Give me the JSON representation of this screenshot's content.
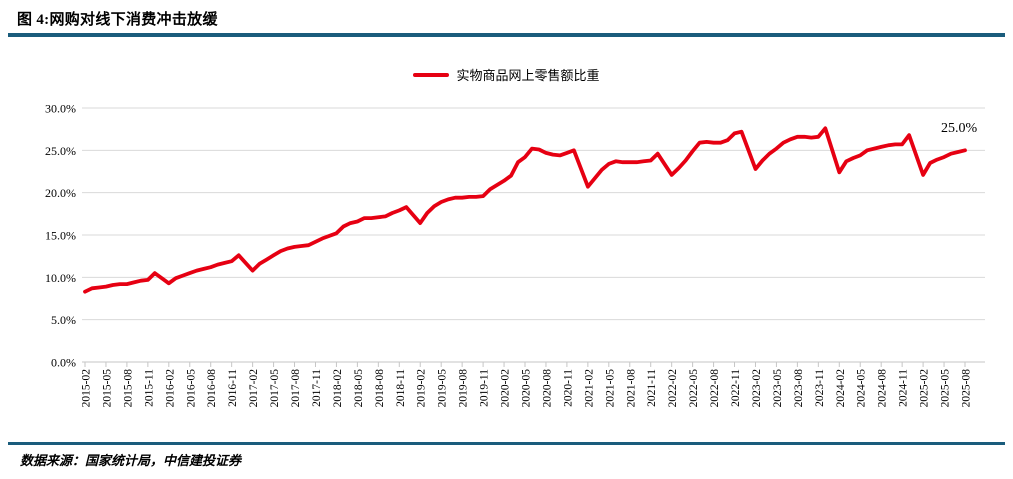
{
  "header": {
    "title": "图 4:网购对线下消费冲击放缓"
  },
  "legend": {
    "label": "实物商品网上零售额比重"
  },
  "annotation": {
    "label": "25.0%"
  },
  "footer": {
    "source": "数据来源：国家统计局，中信建投证券"
  },
  "colors": {
    "accent_rule": "#1a5c7c",
    "series_line": "#e60012",
    "gridline": "#d9d9d9",
    "axis": "#c6c6c6",
    "text": "#000000"
  },
  "chart_data": {
    "type": "line",
    "title": "",
    "series_name": "实物商品网上零售额比重",
    "unit": "%",
    "ylim": [
      0,
      30
    ],
    "y_ticks": [
      0,
      5,
      10,
      15,
      20,
      25,
      30
    ],
    "grid": "horizontal",
    "legend_position": "top-center",
    "last_point_label": "25.0%",
    "x_tick_labels": [
      "2015-02",
      "2015-05",
      "2015-08",
      "2015-11",
      "2016-02",
      "2016-05",
      "2016-08",
      "2016-11",
      "2017-02",
      "2017-05",
      "2017-08",
      "2017-11",
      "2018-02",
      "2018-05",
      "2018-08",
      "2018-11",
      "2019-02",
      "2019-05",
      "2019-08",
      "2019-11",
      "2020-02",
      "2020-05",
      "2020-08",
      "2020-11",
      "2021-02",
      "2021-05",
      "2021-08",
      "2021-11",
      "2022-02",
      "2022-05",
      "2022-08",
      "2022-11",
      "2023-02",
      "2023-05",
      "2023-08",
      "2023-11",
      "2024-02",
      "2024-05",
      "2024-08",
      "2024-11",
      "2025-02",
      "2025-05",
      "2025-08"
    ],
    "months": [
      "2015-02",
      "2015-03",
      "2015-04",
      "2015-05",
      "2015-06",
      "2015-07",
      "2015-08",
      "2015-09",
      "2015-10",
      "2015-11",
      "2015-12",
      "2016-02",
      "2016-03",
      "2016-04",
      "2016-05",
      "2016-06",
      "2016-07",
      "2016-08",
      "2016-09",
      "2016-10",
      "2016-11",
      "2016-12",
      "2017-02",
      "2017-03",
      "2017-04",
      "2017-05",
      "2017-06",
      "2017-07",
      "2017-08",
      "2017-09",
      "2017-10",
      "2017-11",
      "2017-12",
      "2018-02",
      "2018-03",
      "2018-04",
      "2018-05",
      "2018-06",
      "2018-07",
      "2018-08",
      "2018-09",
      "2018-10",
      "2018-11",
      "2018-12",
      "2019-02",
      "2019-03",
      "2019-04",
      "2019-05",
      "2019-06",
      "2019-07",
      "2019-08",
      "2019-09",
      "2019-10",
      "2019-11",
      "2019-12",
      "2020-02",
      "2020-03",
      "2020-04",
      "2020-05",
      "2020-06",
      "2020-07",
      "2020-08",
      "2020-09",
      "2020-10",
      "2020-11",
      "2020-12",
      "2021-02",
      "2021-03",
      "2021-04",
      "2021-05",
      "2021-06",
      "2021-07",
      "2021-08",
      "2021-09",
      "2021-10",
      "2021-11",
      "2021-12",
      "2022-02",
      "2022-03",
      "2022-04",
      "2022-05",
      "2022-06",
      "2022-07",
      "2022-08",
      "2022-09",
      "2022-10",
      "2022-11",
      "2022-12",
      "2023-02",
      "2023-03",
      "2023-04",
      "2023-05",
      "2023-06",
      "2023-07",
      "2023-08",
      "2023-09",
      "2023-10",
      "2023-11",
      "2023-12",
      "2024-02",
      "2024-03",
      "2024-04",
      "2024-05",
      "2024-06",
      "2024-07",
      "2024-08",
      "2024-09",
      "2024-10",
      "2024-11",
      "2024-12",
      "2025-02",
      "2025-03",
      "2025-04",
      "2025-05",
      "2025-06",
      "2025-07",
      "2025-08"
    ],
    "values": [
      8.3,
      8.7,
      8.8,
      8.9,
      9.1,
      9.2,
      9.2,
      9.4,
      9.6,
      9.7,
      10.5,
      9.3,
      9.9,
      10.2,
      10.5,
      10.8,
      11.0,
      11.2,
      11.5,
      11.7,
      11.9,
      12.6,
      10.8,
      11.6,
      12.1,
      12.6,
      13.1,
      13.4,
      13.6,
      13.7,
      13.8,
      14.2,
      14.6,
      15.2,
      16.0,
      16.4,
      16.6,
      17.0,
      17.0,
      17.1,
      17.2,
      17.6,
      17.9,
      18.3,
      16.4,
      17.6,
      18.4,
      18.9,
      19.2,
      19.4,
      19.4,
      19.5,
      19.5,
      19.6,
      20.4,
      21.4,
      22.0,
      23.6,
      24.2,
      25.2,
      25.1,
      24.7,
      24.5,
      24.4,
      24.7,
      25.0,
      20.7,
      21.7,
      22.7,
      23.4,
      23.7,
      23.6,
      23.6,
      23.6,
      23.7,
      23.8,
      24.6,
      22.1,
      22.9,
      23.8,
      24.9,
      25.9,
      26.0,
      25.9,
      25.9,
      26.2,
      27.0,
      27.2,
      22.8,
      23.8,
      24.6,
      25.2,
      25.9,
      26.3,
      26.6,
      26.6,
      26.5,
      26.6,
      27.6,
      22.4,
      23.7,
      24.1,
      24.4,
      25.0,
      25.2,
      25.4,
      25.6,
      25.7,
      25.7,
      26.8,
      22.1,
      23.5,
      23.9,
      24.2,
      24.6,
      24.8,
      25.0
    ]
  }
}
